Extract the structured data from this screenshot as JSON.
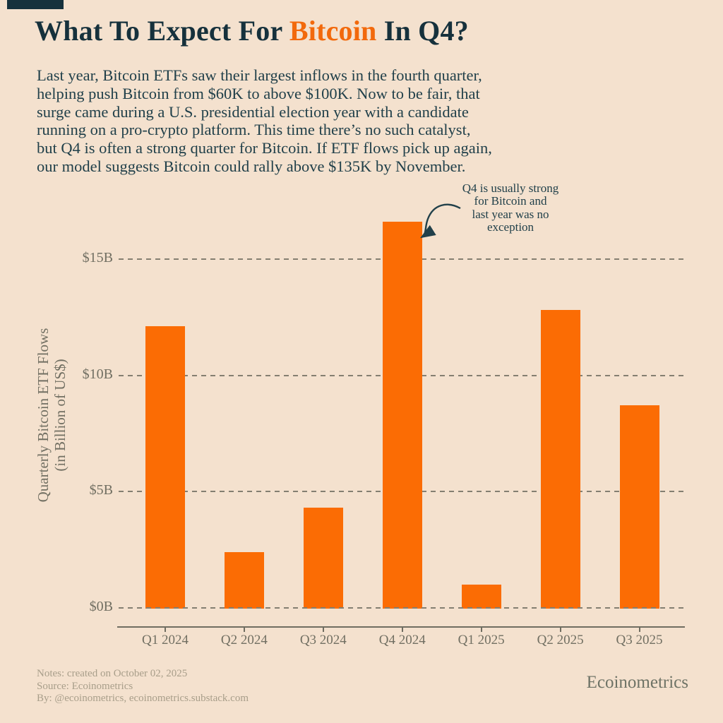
{
  "colors": {
    "background": "#f4e1ce",
    "ink": "#16313c",
    "body_ink": "#21404a",
    "accent": "#f2690c",
    "bar": "#fb6c04",
    "muted": "#716f62",
    "grid": "#847f71",
    "axis": "#6f6d61",
    "footnote": "#a89e8a",
    "wordmark": "#6e7366"
  },
  "header": {
    "title_parts": [
      {
        "text": "What To Expect For ",
        "accent": false
      },
      {
        "text": "Bitcoin",
        "accent": true
      },
      {
        "text": " In Q4?",
        "accent": false
      }
    ]
  },
  "intro": {
    "lines": [
      "Last year, Bitcoin ETFs saw their largest inflows in the fourth quarter,",
      "helping push Bitcoin from $60K to above $100K. Now to be fair, that",
      "surge came during a U.S. presidential election year with a candidate",
      "running on a pro-crypto platform. This time there’s no such catalyst,",
      "but Q4 is often a strong quarter for Bitcoin. If ETF flows pick up again,",
      "our model suggests Bitcoin could rally above $135K by November."
    ]
  },
  "annotation": {
    "lines": [
      "Q4 is usually strong",
      "for Bitcoin and",
      "last year was no",
      "exception"
    ]
  },
  "chart_data": {
    "type": "bar",
    "title": "",
    "categories": [
      "Q1 2024",
      "Q2 2024",
      "Q3 2024",
      "Q4 2024",
      "Q1 2025",
      "Q2 2025",
      "Q3 2025"
    ],
    "values": [
      12.1,
      2.4,
      4.3,
      16.6,
      1.0,
      12.8,
      8.7
    ],
    "xlabel": "",
    "ylabel_lines": [
      "Quarterly Bitcoin ETF Flows",
      "(in Billion of US$)"
    ],
    "y_ticks": [
      {
        "value": 0,
        "label": "$0B"
      },
      {
        "value": 5,
        "label": "$5B"
      },
      {
        "value": 10,
        "label": "$10B"
      },
      {
        "value": 15,
        "label": "$15B"
      }
    ],
    "ylim": [
      0,
      17.5
    ],
    "grid": true,
    "legend": "none",
    "bar_color": "#fb6c04",
    "annotation": "Q4 is usually strong for Bitcoin and last year was no exception (points at Q4 2024 bar)"
  },
  "footer": {
    "notes": [
      "Notes: created on October 02, 2025",
      "Source: Ecoinometrics",
      "By: @ecoinometrics, ecoinometrics.substack.com"
    ],
    "wordmark": "Ecoinometrics"
  }
}
